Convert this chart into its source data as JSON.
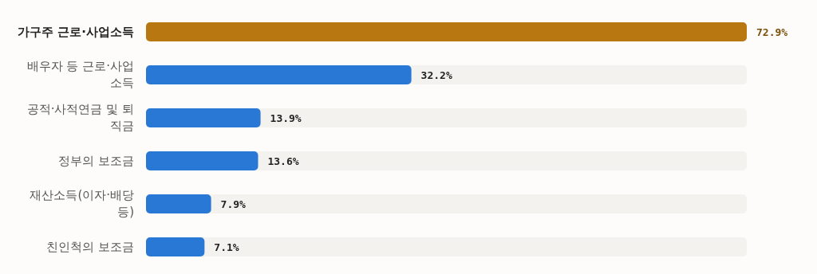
{
  "chart_data": {
    "type": "bar",
    "orientation": "horizontal",
    "categories": [
      "가구주 근로·사업소득",
      "배우자 등 근로·사업소득",
      "공적·사적연금 및 퇴직금",
      "정부의 보조금",
      "재산소득(이자·배당 등)",
      "친인척의 보조금"
    ],
    "values": [
      72.9,
      32.2,
      13.9,
      13.6,
      7.9,
      7.1
    ],
    "value_labels": [
      "72.9%",
      "32.2%",
      "13.9%",
      "13.6%",
      "7.9%",
      "7.1%"
    ],
    "colors": [
      "#b87711",
      "#2a78d6",
      "#2a78d6",
      "#2a78d6",
      "#2a78d6",
      "#2a78d6"
    ]
  }
}
